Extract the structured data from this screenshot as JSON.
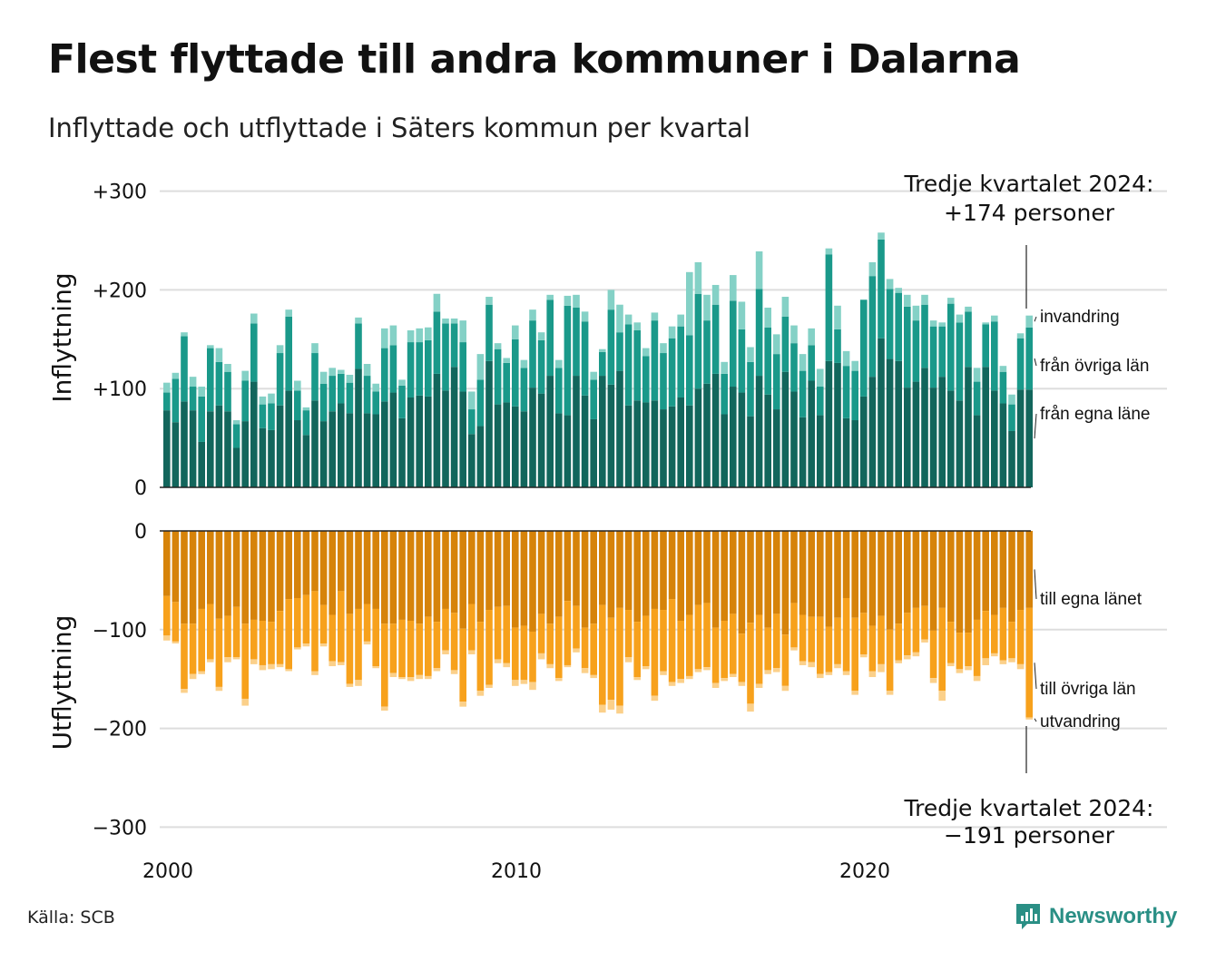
{
  "title": "Flest flyttade till andra kommuner i Dalarna",
  "subtitle": "Inflyttade och utflyttade i Säters kommun per kvartal",
  "source": "Källa: SCB",
  "logo": "Newsworthy",
  "colors": {
    "in_egna": "#12665c",
    "in_ovriga": "#1a998a",
    "in_invandring": "#84d1c6",
    "out_egna": "#d6830a",
    "out_ovriga": "#f7a11c",
    "out_utvandring": "#fbd08a",
    "grid": "#dddddd",
    "logo": "#2a8f85"
  },
  "chart_data": {
    "type": "bar",
    "stacked": true,
    "x_start": "2000 Q1",
    "x_ticks": [
      "2000",
      "2010",
      "2020"
    ],
    "panels": [
      {
        "ylabel": "Inflyttning",
        "ylim": [
          0,
          300
        ],
        "y_ticks": [
          "0",
          "+100",
          "+200",
          "+300"
        ],
        "series": [
          {
            "name": "från egna läne",
            "values": [
              78,
              66,
              87,
              78,
              46,
              77,
              83,
              77,
              40,
              67,
              107,
              60,
              58,
              83,
              98,
              68,
              53,
              88,
              67,
              77,
              85,
              75,
              120,
              75,
              74,
              87,
              96,
              70,
              91,
              93,
              92,
              115,
              98,
              122,
              97,
              54,
              62,
              128,
              84,
              86,
              82,
              77,
              101,
              95,
              113,
              75,
              73,
              113,
              93,
              69,
              113,
              104,
              118,
              83,
              88,
              86,
              88,
              79,
              82,
              91,
              83,
              100,
              105,
              115,
              74,
              102,
              96,
              72,
              113,
              94,
              79,
              117,
              97,
              71,
              108,
              73,
              128,
              126,
              70,
              68,
              92,
              112,
              151,
              130,
              128,
              101,
              107,
              121,
              101,
              112,
              98,
              88,
              122,
              73,
              122,
              98,
              85,
              57,
              99,
              99
            ]
          },
          {
            "name": "från övriga län",
            "values": [
              18,
              44,
              66,
              24,
              46,
              64,
              44,
              40,
              24,
              41,
              59,
              24,
              27,
              53,
              75,
              30,
              25,
              48,
              38,
              36,
              30,
              31,
              46,
              38,
              23,
              54,
              48,
              33,
              56,
              54,
              57,
              63,
              68,
              44,
              50,
              25,
              47,
              57,
              56,
              40,
              68,
              44,
              68,
              54,
              77,
              46,
              111,
              69,
              75,
              40,
              24,
              76,
              39,
              82,
              71,
              47,
              81,
              57,
              69,
              72,
              71,
              96,
              64,
              70,
              41,
              87,
              64,
              55,
              88,
              68,
              56,
              56,
              49,
              47,
              36,
              29,
              108,
              34,
              53,
              50,
              98,
              102,
              100,
              71,
              69,
              82,
              62,
              64,
              62,
              51,
              88,
              79,
              56,
              34,
              43,
              70,
              32,
              27,
              52,
              63
            ]
          },
          {
            "name": "invandring",
            "values": [
              10,
              6,
              4,
              10,
              10,
              3,
              14,
              8,
              4,
              10,
              10,
              8,
              10,
              8,
              7,
              10,
              3,
              10,
              12,
              8,
              4,
              8,
              6,
              12,
              8,
              20,
              20,
              6,
              12,
              14,
              13,
              18,
              5,
              5,
              22,
              18,
              26,
              8,
              6,
              5,
              14,
              8,
              11,
              8,
              5,
              8,
              10,
              13,
              10,
              8,
              3,
              20,
              28,
              10,
              8,
              8,
              8,
              10,
              12,
              12,
              64,
              32,
              26,
              20,
              12,
              26,
              28,
              15,
              38,
              20,
              20,
              20,
              18,
              17,
              17,
              18,
              6,
              24,
              15,
              10,
              0,
              14,
              7,
              10,
              5,
              12,
              15,
              10,
              6,
              4,
              6,
              8,
              5,
              14,
              2,
              6,
              6,
              10,
              5,
              12
            ]
          }
        ]
      },
      {
        "ylabel": "Utflyttning",
        "ylim": [
          -300,
          0
        ],
        "y_ticks": [
          "0",
          "−100",
          "−200",
          "−300"
        ],
        "series": [
          {
            "name": "till egna länet",
            "values": [
              -66,
              -72,
              -94,
              -94,
              -79,
              -74,
              -89,
              -86,
              -77,
              -94,
              -90,
              -91,
              -92,
              -81,
              -69,
              -68,
              -65,
              -61,
              -75,
              -85,
              -61,
              -84,
              -79,
              -74,
              -79,
              -94,
              -94,
              -90,
              -91,
              -94,
              -87,
              -92,
              -79,
              -83,
              -99,
              -74,
              -92,
              -80,
              -77,
              -76,
              -98,
              -96,
              -102,
              -84,
              -94,
              -87,
              -71,
              -76,
              -98,
              -94,
              -75,
              -88,
              -78,
              -80,
              -92,
              -86,
              -79,
              -80,
              -69,
              -91,
              -85,
              -75,
              -73,
              -98,
              -91,
              -84,
              -104,
              -93,
              -85,
              -98,
              -84,
              -105,
              -73,
              -85,
              -87,
              -87,
              -97,
              -88,
              -68,
              -88,
              -83,
              -96,
              -86,
              -100,
              -94,
              -83,
              -78,
              -76,
              -101,
              -78,
              -92,
              -103,
              -103,
              -90,
              -81,
              -85,
              -78,
              -92,
              -80,
              -78
            ]
          },
          {
            "name": "till övriga län",
            "values": [
              -40,
              -40,
              -66,
              -51,
              -63,
              -56,
              -69,
              -42,
              -51,
              -76,
              -40,
              -45,
              -43,
              -54,
              -71,
              -50,
              -49,
              -81,
              -39,
              -47,
              -72,
              -71,
              -72,
              -38,
              -58,
              -84,
              -50,
              -58,
              -57,
              -52,
              -60,
              -47,
              -42,
              -58,
              -74,
              -47,
              -70,
              -76,
              -53,
              -58,
              -53,
              -55,
              -51,
              -40,
              -41,
              -62,
              -65,
              -43,
              -41,
              -52,
              -101,
              -83,
              -99,
              -48,
              -56,
              -51,
              -88,
              -62,
              -84,
              -59,
              -62,
              -65,
              -65,
              -56,
              -58,
              -61,
              -49,
              -82,
              -70,
              -43,
              -55,
              -52,
              -45,
              -47,
              -46,
              -58,
              -46,
              -47,
              -74,
              -74,
              -42,
              -46,
              -49,
              -62,
              -37,
              -43,
              -45,
              -34,
              -48,
              -84,
              -42,
              -37,
              -34,
              -57,
              -48,
              -39,
              -53,
              -37,
              -55,
              -111
            ]
          },
          {
            "name": "utvandring",
            "values": [
              -5,
              -2,
              -4,
              -5,
              -3,
              -3,
              -4,
              -5,
              -2,
              -7,
              -5,
              -5,
              -5,
              -3,
              -2,
              -2,
              -3,
              -4,
              -3,
              -5,
              -3,
              -3,
              -6,
              -3,
              -2,
              -4,
              -4,
              -2,
              -4,
              -4,
              -3,
              -3,
              -4,
              -4,
              -5,
              -4,
              -5,
              -3,
              -4,
              -4,
              -6,
              -4,
              -8,
              -6,
              -4,
              -3,
              -2,
              -4,
              -5,
              -3,
              -8,
              -10,
              -8,
              -5,
              -3,
              -3,
              -5,
              -4,
              -4,
              -4,
              -3,
              -3,
              -3,
              -5,
              -3,
              -3,
              -4,
              -8,
              -4,
              -4,
              -4,
              -5,
              -3,
              -4,
              -5,
              -4,
              -3,
              -4,
              -4,
              -4,
              -3,
              -6,
              -8,
              -4,
              -3,
              -4,
              -4,
              -3,
              -5,
              -10,
              -3,
              -4,
              -4,
              -5,
              -7,
              -3,
              -4,
              -4,
              -5,
              -2
            ]
          }
        ]
      }
    ],
    "annotations": [
      {
        "text": [
          "Tredje kvartalet 2024:",
          "+174 personer"
        ],
        "panel": 0
      },
      {
        "text": [
          "Tredje kvartalet 2024:",
          "−191 personer"
        ],
        "panel": 1
      }
    ]
  }
}
